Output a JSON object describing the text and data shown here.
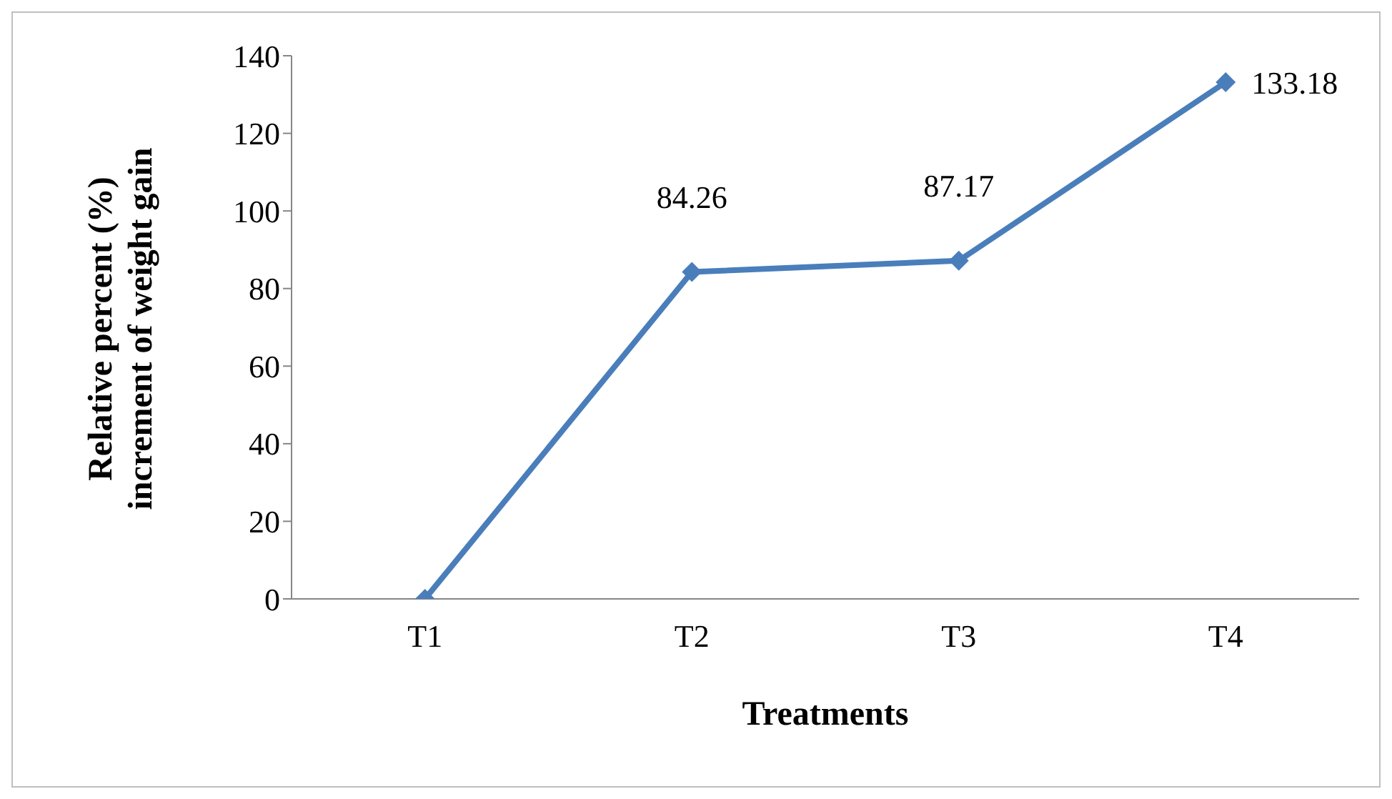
{
  "chart_data": {
    "type": "line",
    "xlabel": "Treatments",
    "ylabel": "Relative percent (%)\nincrement of weight gain",
    "categories": [
      "T1",
      "T2",
      "T3",
      "T4"
    ],
    "series": [
      {
        "color": "#4a7ebb",
        "values": [
          0,
          84.26,
          87.17,
          133.18
        ],
        "value_labels": [
          null,
          "84.26",
          "87.17",
          "133.18"
        ]
      }
    ],
    "ylim": [
      0,
      140
    ],
    "yticks": [
      0,
      20,
      40,
      60,
      80,
      100,
      120,
      140
    ],
    "grid": false,
    "marker": "diamond",
    "line_style": "solid"
  }
}
